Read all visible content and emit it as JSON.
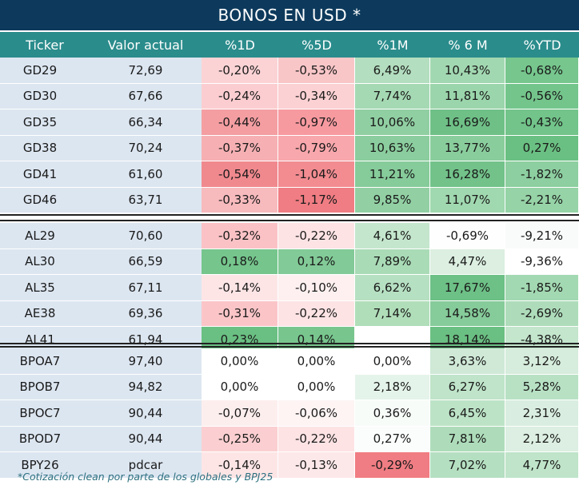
{
  "title": "BONOS EN USD *",
  "headers": [
    "Ticker",
    "Valor actual",
    "%1D",
    "%5D",
    "%1M",
    "% 6 M",
    "%YTD"
  ],
  "groups": [
    {
      "rows": [
        {
          "ticker": "GD29",
          "valor": "72,69",
          "d1": "-0,20%",
          "d5": "-0,53%",
          "m1": "6,49%",
          "m6": "10,43%",
          "ytd": "-0,68%",
          "colors": [
            "#fbd3d5",
            "#f9c6c8",
            "#b3debf",
            "#a2d8b1",
            "#76c68d"
          ]
        },
        {
          "ticker": "GD30",
          "valor": "67,66",
          "d1": "-0,24%",
          "d5": "-0,34%",
          "m1": "7,74%",
          "m6": "11,81%",
          "ytd": "-0,56%",
          "colors": [
            "#fbcdd0",
            "#fbd1d3",
            "#a5d9b3",
            "#9bd5ab",
            "#74c58b"
          ]
        },
        {
          "ticker": "GD35",
          "valor": "66,34",
          "d1": "-0,44%",
          "d5": "-0,97%",
          "m1": "10,06%",
          "m6": "16,69%",
          "ytd": "-0,43%",
          "colors": [
            "#f49ea2",
            "#f79aa0",
            "#90cfa2",
            "#6fc087",
            "#72c48a"
          ]
        },
        {
          "ticker": "GD38",
          "valor": "70,24",
          "d1": "-0,37%",
          "d5": "-0,79%",
          "m1": "10,63%",
          "m6": "13,77%",
          "ytd": "0,27%",
          "colors": [
            "#f6b0b3",
            "#f8a7ac",
            "#8bcd9e",
            "#8acd9d",
            "#6ac082"
          ]
        },
        {
          "ticker": "GD41",
          "valor": "61,60",
          "d1": "-0,54%",
          "d5": "-1,04%",
          "m1": "11,21%",
          "m6": "16,28%",
          "ytd": "-1,82%",
          "colors": [
            "#f0898e",
            "#f28c91",
            "#86cb9a",
            "#72c28a",
            "#8dcfa0"
          ]
        },
        {
          "ticker": "GD46",
          "valor": "63,71",
          "d1": "-0,33%",
          "d5": "-1,17%",
          "m1": "9,85%",
          "m6": "11,07%",
          "ytd": "-2,21%",
          "colors": [
            "#f7babd",
            "#f07d83",
            "#92d0a4",
            "#a0d8af",
            "#96d3a7"
          ]
        }
      ]
    },
    {
      "rows": [
        {
          "ticker": "AL29",
          "valor": "70,60",
          "d1": "-0,32%",
          "d5": "-0,22%",
          "m1": "4,61%",
          "m6": "-0,69%",
          "ytd": "-9,21%",
          "colors": [
            "#fbc2c5",
            "#fde3e4",
            "#c4e6cd",
            "#fefefe",
            "#f8fbf9"
          ]
        },
        {
          "ticker": "AL30",
          "valor": "66,59",
          "d1": "0,18%",
          "d5": "0,12%",
          "m1": "7,89%",
          "m6": "4,47%",
          "ytd": "-9,36%",
          "colors": [
            "#75c58c",
            "#82ca97",
            "#a9dbb6",
            "#dcefe1",
            "#ffffff"
          ]
        },
        {
          "ticker": "AL35",
          "valor": "67,11",
          "d1": "-0,14%",
          "d5": "-0,10%",
          "m1": "6,62%",
          "m6": "17,67%",
          "ytd": "-1,85%",
          "colors": [
            "#fde5e6",
            "#fef0f0",
            "#b6e0c2",
            "#6dc086",
            "#a3d9b2"
          ]
        },
        {
          "ticker": "AE38",
          "valor": "69,36",
          "d1": "-0,31%",
          "d5": "-0,22%",
          "m1": "7,14%",
          "m6": "14,58%",
          "ytd": "-2,69%",
          "colors": [
            "#fbc5c8",
            "#fde3e4",
            "#b0deb9",
            "#86cb9a",
            "#aedcba"
          ]
        },
        {
          "ticker": "AL41",
          "valor": "61,94",
          "d1": "0,23%",
          "d5": "0,14%",
          "m1": "",
          "m6": "18,14%",
          "ytd": "-4,38%",
          "colors": [
            "#6abf82",
            "#78c68e",
            "#ffffff",
            "#6abf82",
            "#c3e6cc"
          ]
        }
      ]
    },
    {
      "rows": [
        {
          "ticker": "BPOA7",
          "valor": "97,40",
          "d1": "0,00%",
          "d5": "0,00%",
          "m1": "0,00%",
          "m6": "3,63%",
          "ytd": "3,12%",
          "colors": [
            "#ffffff",
            "#ffffff",
            "#ffffff",
            "#cfe9d6",
            "#d6ecdc"
          ]
        },
        {
          "ticker": "BPOB7",
          "valor": "94,82",
          "d1": "0,00%",
          "d5": "0,00%",
          "m1": "2,18%",
          "m6": "6,27%",
          "ytd": "5,28%",
          "colors": [
            "#ffffff",
            "#ffffff",
            "#e5f4ea",
            "#bfe4c9",
            "#b8e1c4"
          ]
        },
        {
          "ticker": "BPOC7",
          "valor": "90,44",
          "d1": "-0,07%",
          "d5": "-0,06%",
          "m1": "0,36%",
          "m6": "6,45%",
          "ytd": "2,31%",
          "colors": [
            "#fdeeee",
            "#fef4f4",
            "#f8fcf9",
            "#bde3c7",
            "#d9eee0"
          ]
        },
        {
          "ticker": "BPOD7",
          "valor": "90,44",
          "d1": "-0,25%",
          "d5": "-0,22%",
          "m1": "0,27%",
          "m6": "7,81%",
          "ytd": "2,12%",
          "colors": [
            "#fbcfd1",
            "#fde3e4",
            "#fafdfb",
            "#aedcba",
            "#dcefe2"
          ]
        },
        {
          "ticker": "BPY26",
          "valor": "pdcar",
          "d1": "-0,14%",
          "d5": "-0,13%",
          "m1": "-0,29%",
          "m6": "7,02%",
          "ytd": "4,77%",
          "colors": [
            "#fde5e6",
            "#fde8e9",
            "#f07d83",
            "#b5dfc1",
            "#bfe4c9"
          ]
        }
      ]
    }
  ],
  "footnote": "*Cotización clean por parte de los globales y BPJ25"
}
